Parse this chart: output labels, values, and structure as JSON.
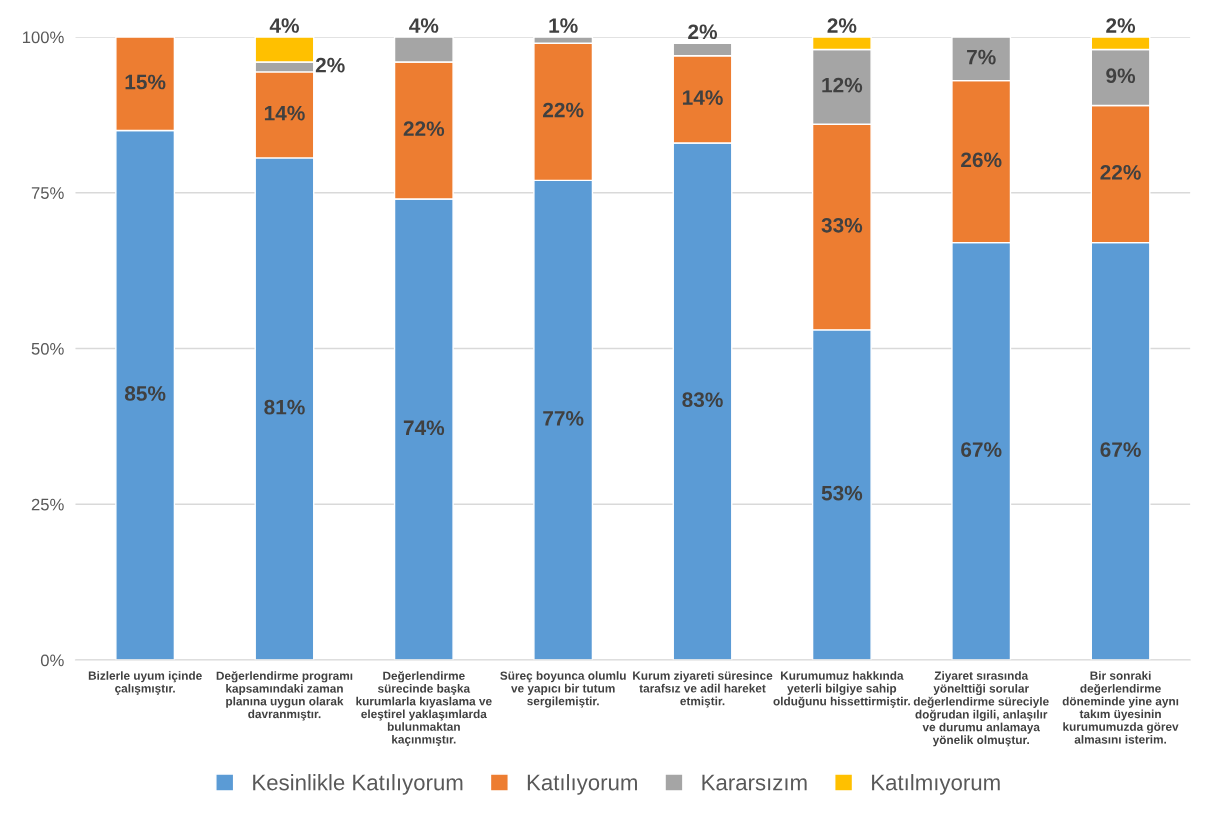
{
  "chart_data": {
    "type": "bar",
    "stacked": true,
    "categories": [
      "Bizlerle uyum içinde\nçalışmıştır.",
      "Değerlendirme programı\nkapsamındaki zaman\nplanına uygun olarak\ndavranmıştır.",
      "Değerlendirme\nsürecinde başka\nkurumlarla kıyaslama ve\neleştirel yaklaşımlarda\nbulunmaktan\nkaçınmıştır.",
      "Süreç boyunca olumlu\nve yapıcı bir tutum\nsergilemiştir.",
      "Kurum ziyareti süresince\ntarafsız ve adil hareket\netmiştir.",
      "Kurumumuz hakkında\nyeterli bilgiye sahip\nolduğunu hissettirmiştir.",
      "Ziyaret sırasında\nyönelttiği sorular\ndeğerlendirme süreciyle\ndoğrudan ilgili, anlaşılır\nve durumu anlamaya\nyönelik olmuştur.",
      "Bir sonraki\ndeğerlendirme\ndöneminde yine aynı\ntakım üyesinin\nkurumumuzda görev\nalmasını isterim."
    ],
    "series": [
      {
        "name": "Kesinlikle Katılıyorum",
        "color": "#5b9bd5",
        "values": [
          85,
          80.6,
          74,
          77,
          83,
          53,
          67,
          67
        ],
        "value_labels": [
          "85%",
          "81%",
          "74%",
          "77%",
          "83%",
          "53%",
          "67%",
          "67%"
        ]
      },
      {
        "name": "Katılıyorum",
        "color": "#ed7d31",
        "values": [
          15,
          13.8,
          22,
          22,
          14,
          33,
          26,
          22
        ],
        "value_labels": [
          "15%",
          "14%",
          "22%",
          "22%",
          "14%",
          "33%",
          "26%",
          "22%"
        ]
      },
      {
        "name": "Kararsızım",
        "color": "#a5a5a5",
        "values": [
          null,
          1.6,
          4,
          1,
          2,
          12,
          7,
          9
        ],
        "value_labels": [
          null,
          "2%",
          "4%",
          "1%",
          "2%",
          "12%",
          "7%",
          "9%"
        ]
      },
      {
        "name": "Katılmıyorum",
        "color": "#ffc000",
        "values": [
          null,
          4.0,
          null,
          null,
          null,
          2,
          null,
          2
        ],
        "value_labels": [
          null,
          "4%",
          null,
          null,
          null,
          "2%",
          null,
          "2%"
        ]
      }
    ],
    "ylim": [
      0,
      100
    ],
    "yticks": [
      {
        "value": 0,
        "label": "0%"
      },
      {
        "value": 25,
        "label": "25%"
      },
      {
        "value": 50,
        "label": "50%"
      },
      {
        "value": 75,
        "label": "75%"
      },
      {
        "value": 100,
        "label": "100%"
      }
    ],
    "grid": "y",
    "legend": "bottom"
  }
}
